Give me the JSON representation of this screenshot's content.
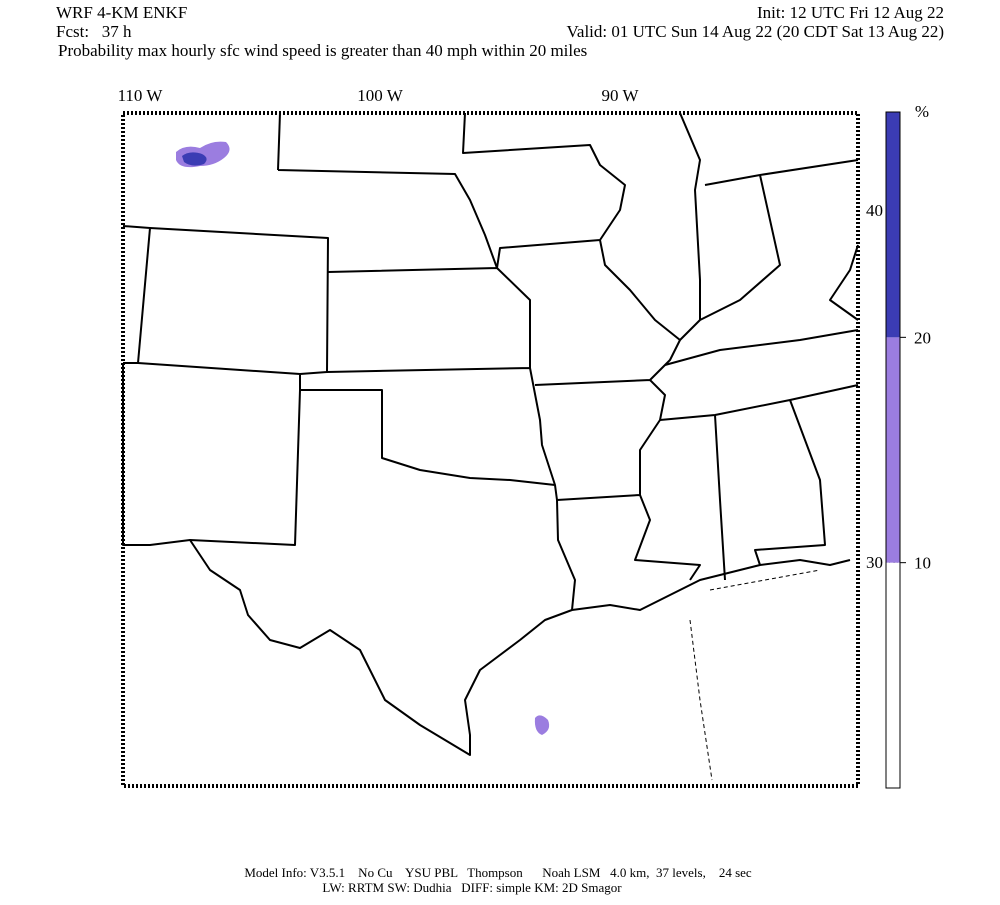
{
  "header": {
    "model": "WRF 4-KM ENKF",
    "forecast": "Fcst:   37 h",
    "init": "Init: 12 UTC Fri 12 Aug 22",
    "valid": "Valid: 01 UTC Sun 14 Aug 22 (20 CDT Sat 13 Aug 22)",
    "title": "Probability max hourly sfc wind speed is greater than 40 mph within 20 miles"
  },
  "map": {
    "longitude_labels": [
      "110 W",
      "100 W",
      "90 W"
    ],
    "latitude_labels": [
      "40 N",
      "30 N"
    ]
  },
  "colorbar": {
    "unit": "%",
    "ticks": [
      10,
      20
    ],
    "colors": [
      "#ffffff",
      "#9b7de0",
      "#3b3cb4"
    ]
  },
  "footer": {
    "line1": "Model Info: V3.5.1    No Cu    YSU PBL   Thompson      Noah LSM   4.0 km,  37 levels,    24 sec",
    "line2": "LW: RRTM SW: Dudhia   DIFF: simple KM: 2D Smagor"
  }
}
